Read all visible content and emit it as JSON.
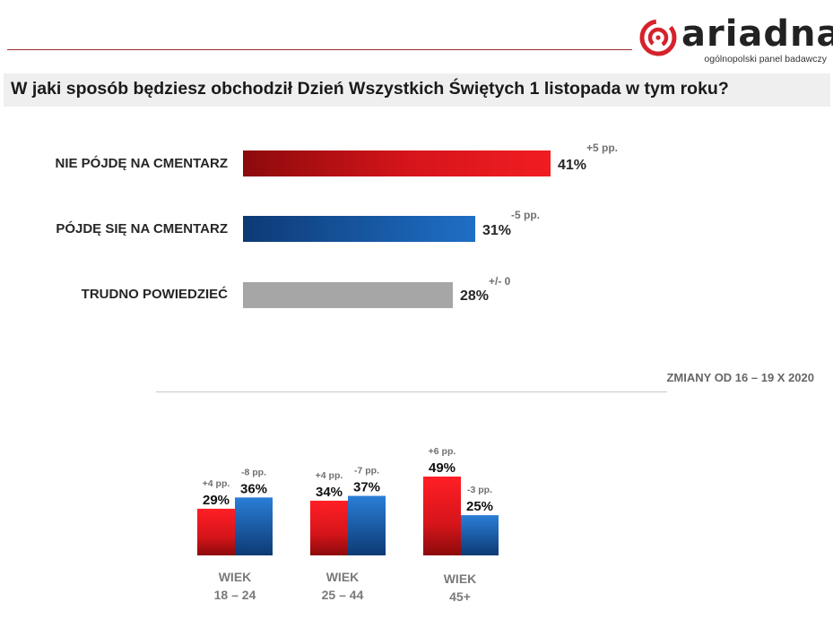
{
  "header": {
    "brand_name": "ariadna",
    "brand_tagline": "ogólnopolski panel badawczy",
    "title": "W jaki sposób będziesz obchodził Dzień Wszystkich Świętych 1 listopada w tym roku?"
  },
  "colors": {
    "red": "#e3161b",
    "red_dark": "#8c0a0c",
    "blue": "#1f6fc6",
    "blue_dark": "#0d3a75",
    "grey": "#a6a6a6"
  },
  "chart_data": [
    {
      "type": "bar",
      "orientation": "horizontal",
      "title": "W jaki sposób będziesz obchodził Dzień Wszystkich Świętych 1 listopada w tym roku?",
      "categories": [
        "NIE PÓJDĘ NA CMENTARZ",
        "PÓJDĘ SIĘ NA CMENTARZ",
        "TRUDNO POWIEDZIEĆ"
      ],
      "values": [
        41,
        31,
        28
      ],
      "value_labels": [
        "41%",
        "31%",
        "28%"
      ],
      "changes": [
        "+5 pp.",
        "-5 pp.",
        "+/- 0"
      ],
      "unit": "%",
      "xlim": [
        0,
        41
      ],
      "note": "ZMIANY OD 16 – 19 X 2020"
    },
    {
      "type": "bar",
      "orientation": "vertical",
      "categories": [
        [
          "WIEK",
          "18 – 24"
        ],
        [
          "WIEK",
          "25 – 44"
        ],
        [
          "WIEK",
          "45+"
        ]
      ],
      "series": [
        {
          "name": "NIE PÓJDĘ NA CMENTARZ",
          "values": [
            29,
            34,
            49
          ],
          "value_labels": [
            "29%",
            "34%",
            "49%"
          ],
          "changes": [
            "+4 pp.",
            "+4 pp.",
            "+6 pp."
          ]
        },
        {
          "name": "PÓJDĘ SIĘ NA CMENTARZ",
          "values": [
            36,
            37,
            25
          ],
          "value_labels": [
            "36%",
            "37%",
            "25%"
          ],
          "changes": [
            "-8 pp.",
            "-7 pp.",
            "-3 pp."
          ]
        }
      ],
      "unit": "%",
      "ylim": [
        0,
        49
      ]
    }
  ]
}
